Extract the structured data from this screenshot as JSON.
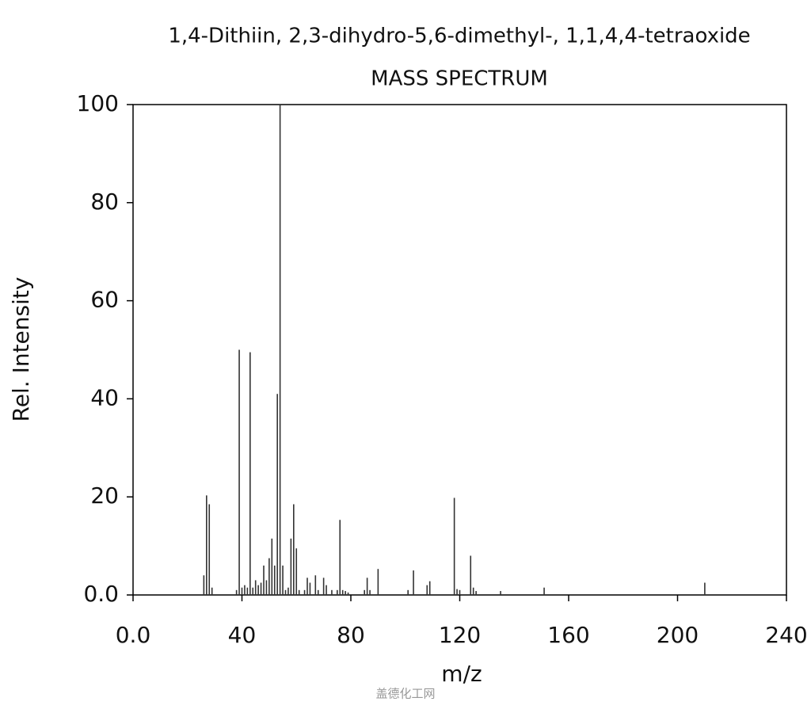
{
  "chart_data": {
    "type": "stem",
    "title": "1,4-Dithiin, 2,3-dihydro-5,6-dimethyl-, 1,1,4,4-tetraoxide",
    "subtitle": "MASS SPECTRUM",
    "x_label": "m/z",
    "y_label": "Rel. Intensity",
    "x": [
      26,
      27,
      28,
      29,
      38,
      39,
      40,
      41,
      42,
      43,
      44,
      45,
      46,
      47,
      48,
      49,
      50,
      51,
      52,
      53,
      54,
      55,
      56,
      57,
      58,
      59,
      60,
      61,
      63,
      64,
      65,
      67,
      68,
      70,
      71,
      73,
      75,
      76,
      77,
      78,
      79,
      85,
      86,
      87,
      90,
      101,
      103,
      108,
      109,
      118,
      119,
      120,
      124,
      125,
      126,
      135,
      151,
      210
    ],
    "values": [
      4,
      20.3,
      18.5,
      1.5,
      1,
      50,
      1.5,
      2,
      1.5,
      49.5,
      1.5,
      3,
      2,
      2.5,
      6,
      3,
      7.5,
      11.5,
      6,
      41,
      100,
      6,
      1,
      1.5,
      11.5,
      18.5,
      9.5,
      1,
      1,
      3.5,
      2.5,
      4,
      1,
      3.5,
      2,
      1,
      1,
      15.3,
      1,
      0.8,
      0.5,
      1,
      3.5,
      1,
      5.3,
      1,
      5,
      2,
      2.8,
      19.8,
      1.2,
      1,
      8,
      1.5,
      0.8,
      0.8,
      1.5,
      2.5
    ],
    "color": "#333333",
    "xlim": [
      0,
      240
    ],
    "xticks": [
      {
        "value": 0,
        "label": "0.0"
      },
      40,
      80,
      120,
      160,
      200,
      240
    ],
    "ylim": [
      0,
      100
    ],
    "yticks": [
      {
        "value": 0,
        "label": "0.0"
      },
      20,
      40,
      60,
      80,
      100
    ],
    "watermark": "盖德化工网"
  }
}
